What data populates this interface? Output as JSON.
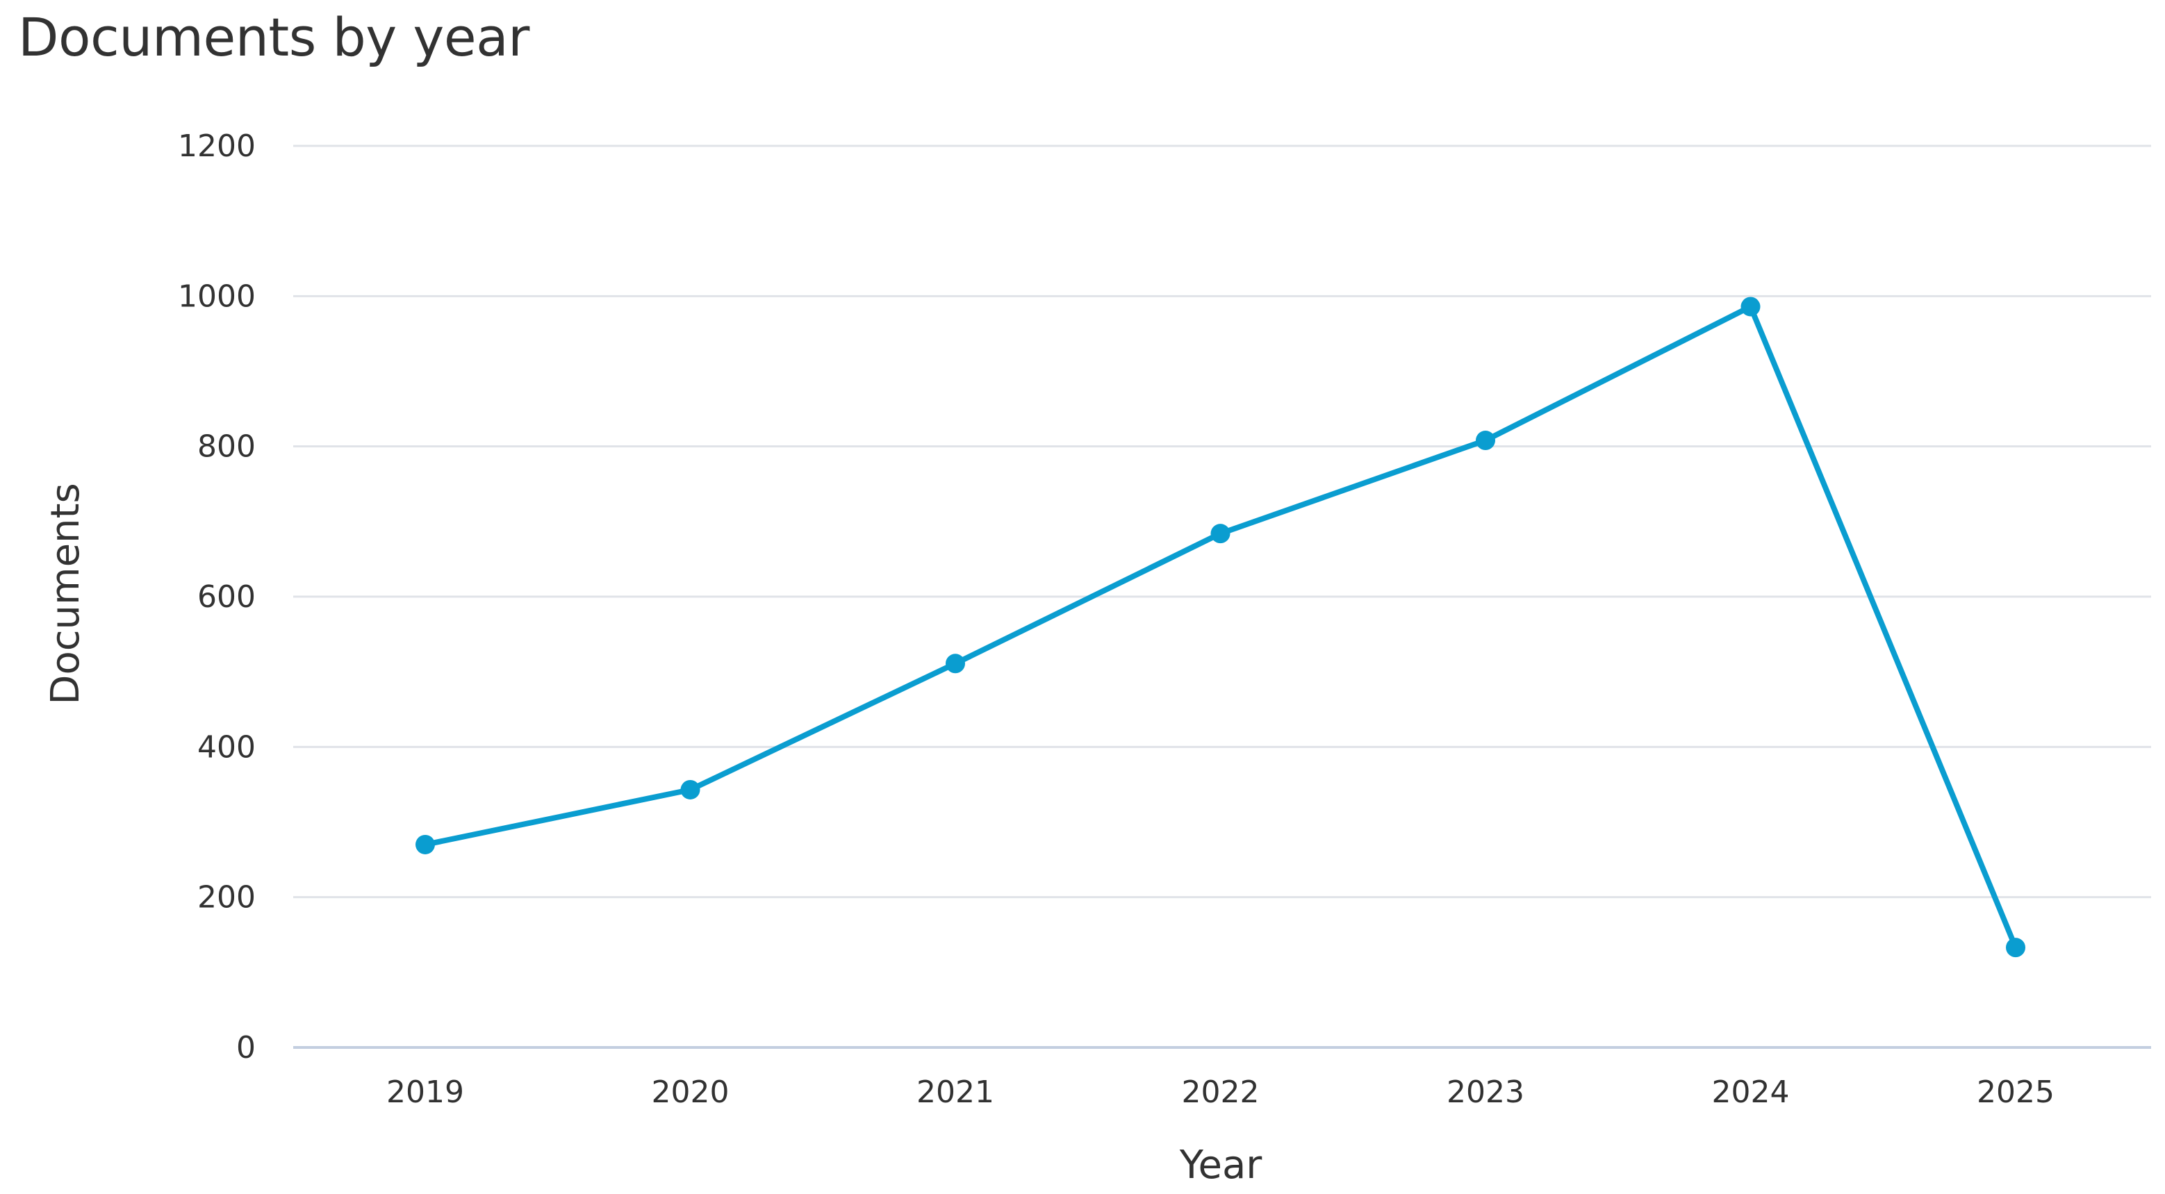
{
  "chart_data": {
    "type": "line",
    "title": "Documents by year",
    "xlabel": "Year",
    "ylabel": "Documents",
    "categories": [
      "2019",
      "2020",
      "2021",
      "2022",
      "2023",
      "2024",
      "2025"
    ],
    "series": [
      {
        "values": [
          270,
          343,
          511,
          684,
          808,
          986,
          133
        ],
        "color": "#0a9dd0"
      }
    ],
    "ylim": [
      0,
      1200
    ],
    "yticks": [
      0,
      200,
      400,
      600,
      800,
      1000,
      1200
    ],
    "ytick_labels": [
      "0",
      "200",
      "400",
      "600",
      "800",
      "1000",
      "1200"
    ],
    "grid": true,
    "gridline_color": "#e0e3e8",
    "baseline_color": "#c3cee0",
    "legend": "none"
  }
}
